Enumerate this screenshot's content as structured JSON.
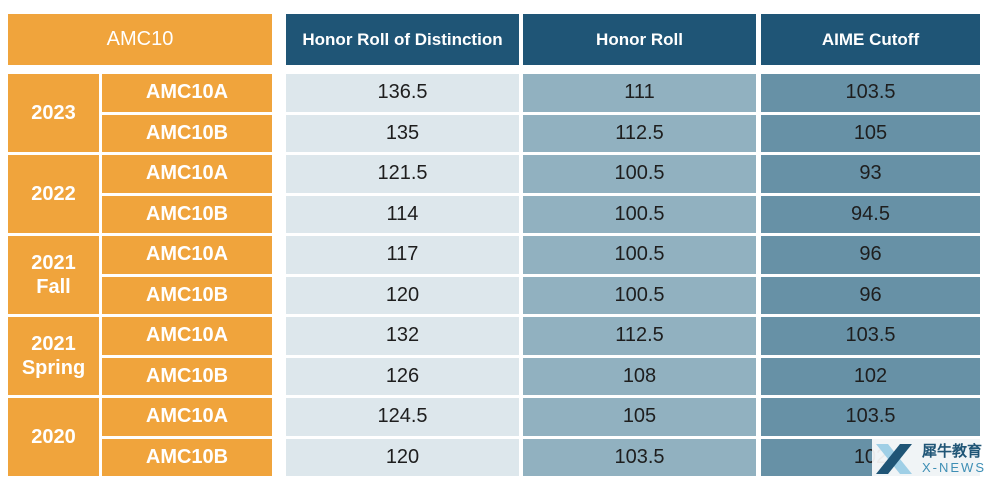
{
  "chart_data": {
    "type": "table",
    "corner_label": "AMC10",
    "columns": [
      "Honor Roll of Distinction",
      "Honor Roll",
      "AIME Cutoff"
    ],
    "groups": [
      {
        "year": [
          "2023"
        ],
        "rows": [
          {
            "label": "AMC10A",
            "values": [
              "136.5",
              "111",
              "103.5"
            ]
          },
          {
            "label": "AMC10B",
            "values": [
              "135",
              "112.5",
              "105"
            ]
          }
        ]
      },
      {
        "year": [
          "2022"
        ],
        "rows": [
          {
            "label": "AMC10A",
            "values": [
              "121.5",
              "100.5",
              "93"
            ]
          },
          {
            "label": "AMC10B",
            "values": [
              "114",
              "100.5",
              "94.5"
            ]
          }
        ]
      },
      {
        "year": [
          "2021",
          "Fall"
        ],
        "rows": [
          {
            "label": "AMC10A",
            "values": [
              "117",
              "100.5",
              "96"
            ]
          },
          {
            "label": "AMC10B",
            "values": [
              "120",
              "100.5",
              "96"
            ]
          }
        ]
      },
      {
        "year": [
          "2021",
          "Spring"
        ],
        "rows": [
          {
            "label": "AMC10A",
            "values": [
              "132",
              "112.5",
              "103.5"
            ]
          },
          {
            "label": "AMC10B",
            "values": [
              "126",
              "108",
              "102"
            ]
          }
        ]
      },
      {
        "year": [
          "2020"
        ],
        "rows": [
          {
            "label": "AMC10A",
            "values": [
              "124.5",
              "105",
              "103.5"
            ]
          },
          {
            "label": "AMC10B",
            "values": [
              "120",
              "103.5",
              "102"
            ]
          }
        ]
      }
    ]
  },
  "watermark": {
    "chinese": "犀牛教育",
    "english": "X-NEWS"
  },
  "colors": {
    "orange": "#f0a43c",
    "header_blue": "#1f5576",
    "col1": "#dde7ec",
    "col2": "#91b1c0",
    "col3": "#6791a6"
  }
}
